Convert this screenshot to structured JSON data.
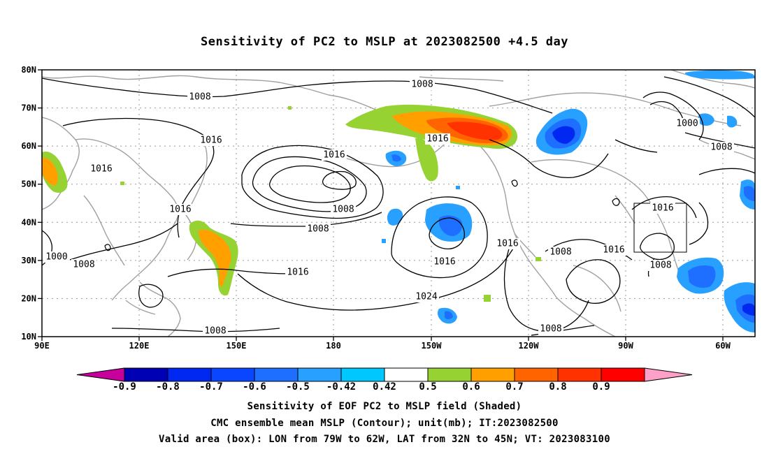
{
  "title": "Sensitivity of PC2 to MSLP at 2023082500 +4.5 day",
  "map": {
    "lat_labels": [
      "80N",
      "70N",
      "60N",
      "50N",
      "40N",
      "30N",
      "20N",
      "10N"
    ],
    "lon_labels": [
      "90E",
      "120E",
      "150E",
      "180",
      "150W",
      "120W",
      "90W",
      "60W"
    ],
    "lat_range": [
      10,
      80
    ],
    "lon_range_east": [
      90,
      310
    ],
    "grid": "dotted",
    "contour_unit": "mb",
    "contour_labels": [
      "1008",
      "1008",
      "1016",
      "1016",
      "1016",
      "1016",
      "1016",
      "1008",
      "1008",
      "1016",
      "1016",
      "1024",
      "1016",
      "1008",
      "1016",
      "1008",
      "1008",
      "1016",
      "1008",
      "1000",
      "1008",
      "1000",
      "1008"
    ]
  },
  "colorbar": {
    "labels": [
      "-0.9",
      "-0.8",
      "-0.7",
      "-0.6",
      "-0.5",
      "-0.42",
      "0.42",
      "0.5",
      "0.6",
      "0.7",
      "0.8",
      "0.9"
    ],
    "colors": [
      "#c8009b",
      "#0000b4",
      "#0028f0",
      "#0a46ff",
      "#1e6eff",
      "#28a0ff",
      "#00c8ff",
      "#ffffff",
      "#96d232",
      "#ffa000",
      "#ff6400",
      "#ff3200",
      "#ff0000",
      "#ffa0c8"
    ]
  },
  "box": {
    "lon_west": 79,
    "lon_east": 62,
    "lat_south": 32,
    "lat_north": 45
  },
  "footer": {
    "line1": "Sensitivity of EOF PC2 to MSLP field (Shaded)",
    "line2": "CMC ensemble mean MSLP (Contour); unit(mb); IT:2023082500",
    "line3": "Valid area (box): LON from 79W to 62W, LAT from 32N to 45N; VT: 2023083100"
  }
}
